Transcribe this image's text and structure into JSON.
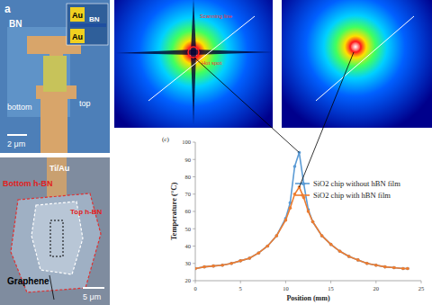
{
  "chart_data": {
    "type": "line",
    "x_label": "Position (mm)",
    "y_label": "Temperature (°C)",
    "annotations": [
      "(c)"
    ],
    "x": [
      0,
      1,
      2,
      3,
      4,
      5,
      6,
      7,
      8,
      9,
      10,
      10.5,
      11,
      11.5,
      12,
      12.5,
      13,
      14,
      15,
      16,
      17,
      18,
      19,
      20,
      21,
      22,
      23,
      23.5
    ],
    "series": [
      {
        "name": "SiO2 chip without hBN film",
        "color": "#5b9bd5",
        "marker": "circle",
        "values": [
          27,
          28,
          28.5,
          29,
          30,
          31.5,
          33,
          36,
          40,
          46,
          56,
          65,
          86,
          94,
          76,
          61,
          54,
          46,
          41,
          37,
          34,
          32,
          30,
          29,
          28,
          27.5,
          27,
          27
        ]
      },
      {
        "name": "SiO2 chip with hBN film",
        "color": "#ed7d31",
        "marker": "circle",
        "values": [
          27,
          28,
          28.5,
          29,
          30,
          31.5,
          33,
          36,
          40,
          46,
          55,
          62,
          70,
          74,
          68,
          60,
          54,
          46,
          41,
          37,
          34,
          32,
          30,
          29,
          28,
          27.5,
          27,
          27
        ]
      }
    ],
    "xlim": [
      0,
      25
    ],
    "xticks": [
      0,
      5,
      10,
      15,
      20,
      25
    ],
    "ylim": [
      20,
      100
    ],
    "yticks": [
      20,
      30,
      40,
      50,
      60,
      70,
      80,
      90,
      100
    ],
    "legend": "upper-right"
  },
  "device_image": {
    "panel_label": "a",
    "au_labels": [
      "Au",
      "Au"
    ],
    "bn_labels": [
      "BN",
      "BN"
    ],
    "electrode_labels": [
      "top",
      "bottom"
    ],
    "scale_bar": "2 μm"
  },
  "micrograph": {
    "electrode": "Ti/Au",
    "layers": [
      "Bottom h-BN",
      "Top h-BN"
    ],
    "flake": "Graphene",
    "scale_bar": "5 μm"
  },
  "thermal_images": {
    "annotations": [
      "Scanning line",
      "Hot spot"
    ]
  }
}
